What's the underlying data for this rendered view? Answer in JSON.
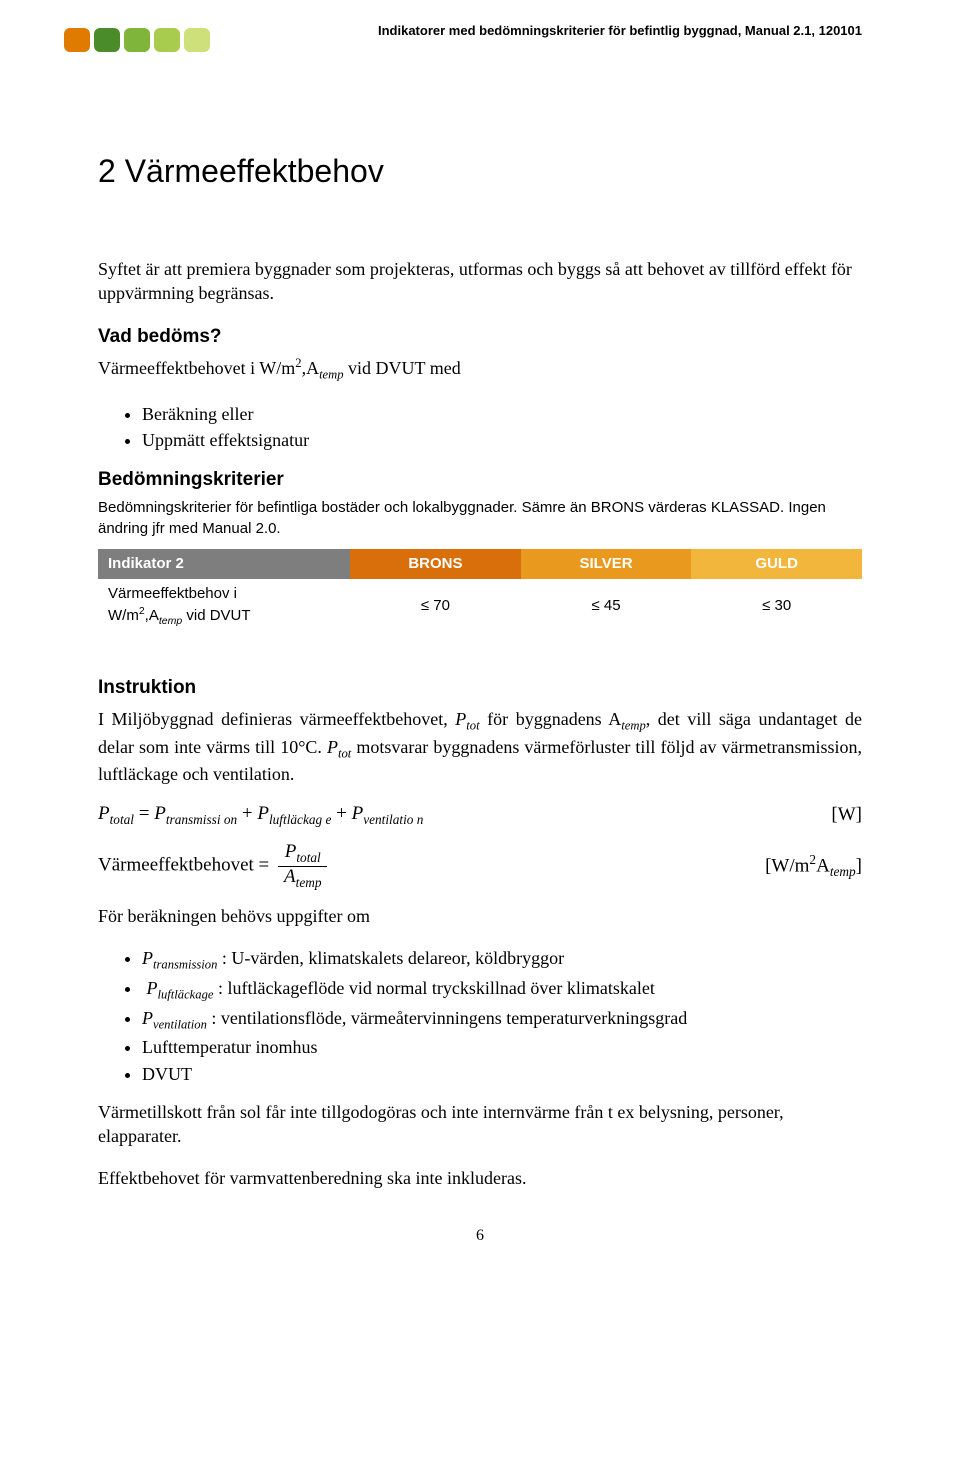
{
  "header": {
    "text": "Indikatorer med bedömningskriterier för befintlig byggnad, Manual 2.1, 120101",
    "logo_colors": [
      "#e07a00",
      "#4a8b2a",
      "#7fb539",
      "#a8cc4e",
      "#cde07a"
    ]
  },
  "title": "2 Värmeeffektbehov",
  "intro": "Syftet är att premiera byggnader som projekteras, utformas och byggs så att behovet av tillförd effekt för uppvärmning begränsas.",
  "vad_bedoms": {
    "heading": "Vad bedöms?",
    "line_prefix": "Värmeeffektbehovet i W/m",
    "line_mid": ",A",
    "line_suffix": " vid DVUT med",
    "items": [
      "Beräkning eller",
      "Uppmätt effektsignatur"
    ]
  },
  "criteria": {
    "heading": "Bedömningskriterier",
    "note": "Bedömningskriterier för befintliga bostäder och lokalbyggnader. Sämre än BRONS värderas KLASSAD. Ingen ändring jfr med Manual 2.0.",
    "table": {
      "header_rowlabel": "Indikator 2",
      "levels": [
        {
          "label": "BRONS",
          "bg": "#d96f0a"
        },
        {
          "label": "SILVER",
          "bg": "#e8991e"
        },
        {
          "label": "GULD",
          "bg": "#f2b63c"
        }
      ],
      "row_label_1": "Värmeeffektbehov i",
      "row_label_2a": "W/m",
      "row_label_2b": ",A",
      "row_label_2c": " vid DVUT",
      "values": [
        "≤ 70",
        "≤ 45",
        "≤ 30"
      ]
    }
  },
  "instruktion": {
    "heading": "Instruktion",
    "para1_a": "I Miljöbyggnad definieras värmeeffektbehovet, ",
    "para1_b": " för byggnadens A",
    "para1_c": ", det vill säga undantaget de delar som inte värms till 10°C. ",
    "para1_d": " motsvarar byggnadens värmeförluster till följd av värmetransmission, luftläckage och ventilation.",
    "formula1": {
      "lhs": "P",
      "lhs_sub": "total",
      "op1": " = ",
      "t1": "P",
      "t1_sub": "transmissi on",
      "op2": " + ",
      "t2": "P",
      "t2_sub": "luftläckag e",
      "op3": " + ",
      "t3": "P",
      "t3_sub": "ventilatio n",
      "unit": "[W]"
    },
    "formula2": {
      "label": "Värmeeffektbehovet = ",
      "num": "P",
      "num_sub": "total",
      "den": "A",
      "den_sub": "temp",
      "unit_a": "[W/m",
      "unit_b": "A",
      "unit_c": "]"
    },
    "calc_intro": "För beräkningen behövs uppgifter om",
    "bullets": [
      {
        "sym": "P",
        "sub": "transmission",
        "text": " : U-värden, klimatskalets delareor, köldbryggor"
      },
      {
        "sym": "P",
        "sub": "luftläckage",
        "text": " : luftläckageflöde vid normal tryckskillnad över klimatskalet"
      },
      {
        "sym": "P",
        "sub": "ventilation",
        "text": " : ventilationsflöde, värmeåtervinningens temperaturverkningsgrad"
      },
      {
        "plain": "Lufttemperatur inomhus"
      },
      {
        "plain": "DVUT"
      }
    ],
    "para2": "Värmetillskott från sol får inte tillgodogöras och inte internvärme från t ex belysning, personer, elapparater.",
    "para3": "Effektbehovet för varmvattenberedning ska inte inkluderas."
  },
  "page_number": "6"
}
